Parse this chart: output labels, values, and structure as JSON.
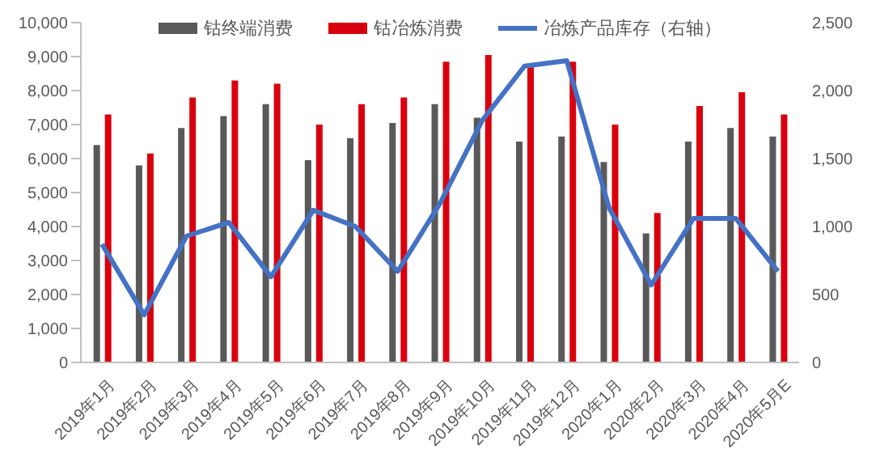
{
  "chart_data": {
    "type": "bar",
    "categories": [
      "2019年1月",
      "2019年2月",
      "2019年3月",
      "2019年4月",
      "2019年5月",
      "2019年6月",
      "2019年7月",
      "2019年8月",
      "2019年9月",
      "2019年10月",
      "2019年11月",
      "2019年12月",
      "2020年1月",
      "2020年2月",
      "2020年3月",
      "2020年4月",
      "2020年5月E"
    ],
    "series": [
      {
        "name": "钴终端消费",
        "color": "#595959",
        "values": [
          6400,
          5800,
          6900,
          7250,
          7600,
          5950,
          6600,
          7050,
          7600,
          7200,
          6500,
          6650,
          5900,
          3800,
          6500,
          6900,
          6650
        ]
      },
      {
        "name": "钴冶炼消费",
        "color": "#d9000d",
        "values": [
          7300,
          6150,
          7800,
          8300,
          8200,
          7000,
          7600,
          7800,
          8850,
          9050,
          8750,
          8850,
          7000,
          4400,
          7550,
          7950,
          7300
        ]
      },
      {
        "name": "冶炼产品库存（右轴）",
        "color": "#4472c4",
        "type": "line",
        "axis": "y2",
        "values": [
          870,
          350,
          930,
          1030,
          630,
          1120,
          1000,
          670,
          1170,
          1780,
          2180,
          2220,
          1140,
          570,
          1060,
          1060,
          670
        ]
      }
    ],
    "ylim": [
      0,
      10000
    ],
    "yticks": [
      0,
      {
        "value": 1000,
        "label": "1,000"
      },
      {
        "value": 2000,
        "label": "2,000"
      },
      {
        "value": 3000,
        "label": "3,000"
      },
      {
        "value": 4000,
        "label": "4,000"
      },
      {
        "value": 5000,
        "label": "5,000"
      },
      {
        "value": 6000,
        "label": "6,000"
      },
      {
        "value": 7000,
        "label": "7,000"
      },
      {
        "value": 8000,
        "label": "8,000"
      },
      {
        "value": 9000,
        "label": "9,000"
      },
      {
        "value": 10000,
        "label": "10,000"
      }
    ],
    "y2lim": [
      0,
      2500
    ],
    "y2ticks": [
      0,
      500,
      {
        "value": 1000,
        "label": "1,000"
      },
      {
        "value": 1500,
        "label": "1,500"
      },
      {
        "value": 2000,
        "label": "2,000"
      },
      {
        "value": 2500,
        "label": "2,500"
      }
    ],
    "grid": false,
    "legend": "top",
    "marker": "none",
    "line_style": "solid"
  }
}
